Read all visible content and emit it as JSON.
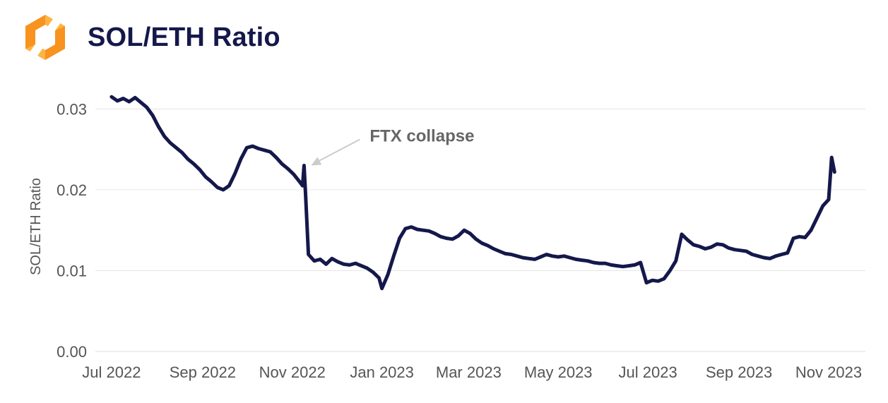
{
  "header": {
    "title": "SOL/ETH Ratio"
  },
  "colors": {
    "line": "#14184a",
    "logo_primary": "#f7931e",
    "logo_secondary": "#ffb347",
    "grid": "#e6e6e6",
    "annotation_arrow": "#cccccc"
  },
  "chart_data": {
    "type": "line",
    "title": "SOL/ETH Ratio",
    "xlabel": "",
    "ylabel": "SOL/ETH Ratio",
    "ylim": [
      0,
      0.033
    ],
    "grid": true,
    "yticks": [
      0.0,
      0.01,
      0.02,
      0.03
    ],
    "ytick_labels": [
      "0.00",
      "0.01",
      "0.02",
      "0.03"
    ],
    "xticks": [
      "2022-07-01",
      "2022-09-01",
      "2022-11-01",
      "2023-01-01",
      "2023-03-01",
      "2023-05-01",
      "2023-07-01",
      "2023-09-01",
      "2023-11-01"
    ],
    "xtick_labels": [
      "Jul 2022",
      "Sep 2022",
      "Nov 2022",
      "Jan 2023",
      "Mar 2023",
      "May 2023",
      "Jul 2023",
      "Sep 2023",
      "Nov 2023"
    ],
    "xlim": [
      "2022-06-20",
      "2023-11-26"
    ],
    "series": [
      {
        "x": [
          "2022-07-01",
          "2022-07-05",
          "2022-07-09",
          "2022-07-13",
          "2022-07-17",
          "2022-07-21",
          "2022-07-25",
          "2022-07-29",
          "2022-08-02",
          "2022-08-06",
          "2022-08-10",
          "2022-08-14",
          "2022-08-18",
          "2022-08-22",
          "2022-08-26",
          "2022-08-30",
          "2022-09-03",
          "2022-09-07",
          "2022-09-11",
          "2022-09-15",
          "2022-09-19",
          "2022-09-23",
          "2022-09-27",
          "2022-10-01",
          "2022-10-05",
          "2022-10-09",
          "2022-10-13",
          "2022-10-17",
          "2022-10-21",
          "2022-10-25",
          "2022-10-29",
          "2022-11-02",
          "2022-11-06",
          "2022-11-08",
          "2022-11-09",
          "2022-11-10",
          "2022-11-12",
          "2022-11-16",
          "2022-11-20",
          "2022-11-24",
          "2022-11-28",
          "2022-12-02",
          "2022-12-06",
          "2022-12-10",
          "2022-12-14",
          "2022-12-18",
          "2022-12-22",
          "2022-12-26",
          "2022-12-30",
          "2023-01-01",
          "2023-01-05",
          "2023-01-09",
          "2023-01-13",
          "2023-01-17",
          "2023-01-21",
          "2023-01-25",
          "2023-01-29",
          "2023-02-02",
          "2023-02-06",
          "2023-02-10",
          "2023-02-14",
          "2023-02-18",
          "2023-02-22",
          "2023-02-26",
          "2023-03-02",
          "2023-03-06",
          "2023-03-10",
          "2023-03-14",
          "2023-03-18",
          "2023-03-22",
          "2023-03-26",
          "2023-03-30",
          "2023-04-03",
          "2023-04-07",
          "2023-04-11",
          "2023-04-15",
          "2023-04-19",
          "2023-04-23",
          "2023-04-27",
          "2023-05-01",
          "2023-05-05",
          "2023-05-09",
          "2023-05-13",
          "2023-05-17",
          "2023-05-21",
          "2023-05-25",
          "2023-05-29",
          "2023-06-02",
          "2023-06-06",
          "2023-06-10",
          "2023-06-14",
          "2023-06-18",
          "2023-06-22",
          "2023-06-26",
          "2023-06-30",
          "2023-07-04",
          "2023-07-08",
          "2023-07-12",
          "2023-07-16",
          "2023-07-20",
          "2023-07-24",
          "2023-07-28",
          "2023-08-01",
          "2023-08-05",
          "2023-08-09",
          "2023-08-13",
          "2023-08-17",
          "2023-08-21",
          "2023-08-25",
          "2023-08-29",
          "2023-09-02",
          "2023-09-06",
          "2023-09-10",
          "2023-09-14",
          "2023-09-18",
          "2023-09-22",
          "2023-09-26",
          "2023-09-30",
          "2023-10-04",
          "2023-10-08",
          "2023-10-12",
          "2023-10-16",
          "2023-10-20",
          "2023-10-24",
          "2023-10-28",
          "2023-11-01",
          "2023-11-03",
          "2023-11-05"
        ],
        "values": [
          0.0315,
          0.031,
          0.0313,
          0.0309,
          0.0314,
          0.0308,
          0.0302,
          0.0292,
          0.0278,
          0.0266,
          0.0258,
          0.0252,
          0.0246,
          0.0238,
          0.0232,
          0.0225,
          0.0216,
          0.021,
          0.0203,
          0.02,
          0.0205,
          0.022,
          0.0238,
          0.0252,
          0.0254,
          0.0251,
          0.0249,
          0.0247,
          0.024,
          0.0232,
          0.0226,
          0.0219,
          0.021,
          0.0205,
          0.023,
          0.0195,
          0.012,
          0.0112,
          0.0114,
          0.0108,
          0.0115,
          0.0111,
          0.0108,
          0.0107,
          0.0109,
          0.0106,
          0.0103,
          0.0098,
          0.0091,
          0.0078,
          0.0095,
          0.0118,
          0.014,
          0.0152,
          0.0154,
          0.0151,
          0.015,
          0.0149,
          0.0146,
          0.0142,
          0.014,
          0.0139,
          0.0143,
          0.015,
          0.0146,
          0.0139,
          0.0134,
          0.0131,
          0.0127,
          0.0124,
          0.0121,
          0.012,
          0.0118,
          0.0116,
          0.0115,
          0.0114,
          0.0117,
          0.012,
          0.0118,
          0.0117,
          0.0118,
          0.0116,
          0.0114,
          0.0113,
          0.0112,
          0.011,
          0.0109,
          0.0109,
          0.0107,
          0.0106,
          0.0105,
          0.0106,
          0.0107,
          0.011,
          0.0085,
          0.0088,
          0.0087,
          0.009,
          0.01,
          0.0112,
          0.0145,
          0.0138,
          0.0132,
          0.013,
          0.0127,
          0.0129,
          0.0133,
          0.0132,
          0.0128,
          0.0126,
          0.0125,
          0.0124,
          0.012,
          0.0118,
          0.0116,
          0.0115,
          0.0118,
          0.012,
          0.0122,
          0.014,
          0.0142,
          0.0141,
          0.015,
          0.0165,
          0.018,
          0.0188,
          0.024,
          0.0222
        ]
      }
    ],
    "annotations": [
      {
        "text": "FTX collapse",
        "x": "2022-11-09",
        "y": 0.023
      }
    ]
  }
}
